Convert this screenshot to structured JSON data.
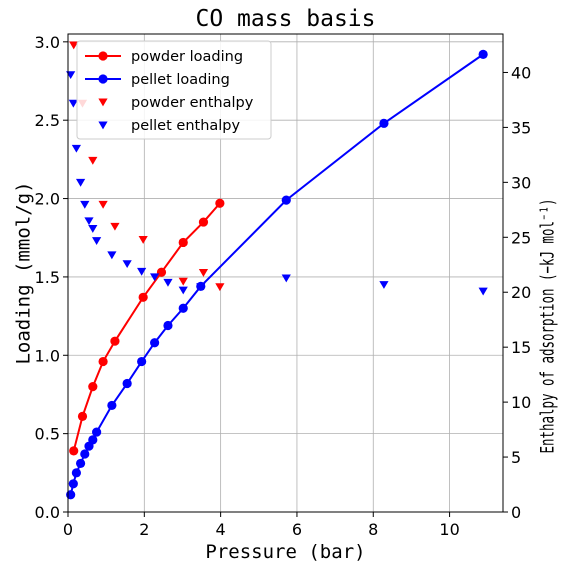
{
  "chart_data": {
    "type": "line",
    "title": "CO mass basis",
    "xlabel": "Pressure (bar)",
    "ylabel": "Loading (mmol/g)",
    "y2label": "Enthalpy of adsorption (−kJ mol⁻¹)",
    "xlim": [
      0,
      11.4
    ],
    "ylim": [
      0,
      3.05
    ],
    "y2lim": [
      0,
      43.5
    ],
    "xticks": [
      0,
      2,
      4,
      6,
      8,
      10
    ],
    "yticks": [
      0.0,
      0.5,
      1.0,
      1.5,
      2.0,
      2.5,
      3.0
    ],
    "ytick_labels": [
      "0.0",
      "0.5",
      "1.0",
      "1.5",
      "2.0",
      "2.5",
      "3.0"
    ],
    "y2ticks": [
      0,
      5,
      10,
      15,
      20,
      25,
      30,
      35,
      40
    ],
    "grid": true,
    "legend_position": "top-left",
    "series": [
      {
        "name": "powder loading",
        "axis": "left",
        "style": "line-marker",
        "color": "#ff0000",
        "x": [
          0.15,
          0.38,
          0.65,
          0.92,
          1.23,
          1.97,
          2.45,
          3.02,
          3.55,
          3.98
        ],
        "y": [
          0.39,
          0.61,
          0.8,
          0.96,
          1.09,
          1.37,
          1.53,
          1.72,
          1.85,
          1.97
        ]
      },
      {
        "name": "pellet loading",
        "axis": "left",
        "style": "line-marker",
        "color": "#0000ff",
        "x": [
          0.07,
          0.14,
          0.22,
          0.33,
          0.44,
          0.55,
          0.65,
          0.75,
          1.15,
          1.55,
          1.93,
          2.27,
          2.62,
          3.02,
          3.48,
          5.72,
          8.28,
          10.88
        ],
        "y": [
          0.11,
          0.18,
          0.25,
          0.31,
          0.37,
          0.42,
          0.46,
          0.51,
          0.68,
          0.82,
          0.96,
          1.08,
          1.19,
          1.3,
          1.44,
          1.99,
          2.48,
          2.92
        ]
      },
      {
        "name": "powder enthalpy",
        "axis": "right",
        "style": "marker",
        "color": "#ff0000",
        "x": [
          0.15,
          0.38,
          0.65,
          0.92,
          1.23,
          1.97,
          3.02,
          3.55,
          3.98
        ],
        "y": [
          42.5,
          37.2,
          32.0,
          28.0,
          26.0,
          24.8,
          21.0,
          21.8,
          20.5
        ]
      },
      {
        "name": "pellet enthalpy",
        "axis": "right",
        "style": "marker",
        "color": "#0000ff",
        "x": [
          0.07,
          0.14,
          0.22,
          0.33,
          0.44,
          0.55,
          0.65,
          0.75,
          1.15,
          1.55,
          1.93,
          2.27,
          2.62,
          3.02,
          3.48,
          5.72,
          8.28,
          10.88
        ],
        "y": [
          39.8,
          37.2,
          33.1,
          30.0,
          28.0,
          26.5,
          25.8,
          24.7,
          23.4,
          22.6,
          21.9,
          21.4,
          20.9,
          20.2,
          20.5,
          21.3,
          20.7,
          20.1
        ]
      }
    ]
  }
}
